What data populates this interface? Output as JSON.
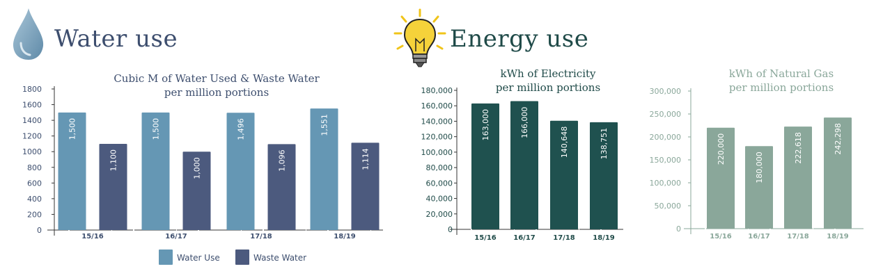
{
  "header": {
    "water_title": "Water use",
    "energy_title": "Energy use",
    "water_icon": "water-drop-icon",
    "energy_icon": "light-bulb-icon"
  },
  "chart_data": [
    {
      "id": "water",
      "type": "bar",
      "title": [
        "Cubic M of Water Used & Waste Water",
        "per million portions"
      ],
      "categories": [
        "15/16",
        "16/17",
        "17/18",
        "18/19"
      ],
      "series": [
        {
          "name": "Water Use",
          "color": "#6597b4",
          "values": [
            1500,
            1500,
            1496,
            1551
          ],
          "labels": [
            "1,500",
            "1,500",
            "1,496",
            "1,551"
          ]
        },
        {
          "name": "Waste Water",
          "color": "#4c5a7e",
          "values": [
            1100,
            1000,
            1096,
            1114
          ],
          "labels": [
            "1,100",
            "1,000",
            "1,096",
            "1,114"
          ]
        }
      ],
      "ylim": [
        0,
        1800
      ],
      "yticks": [
        0,
        200,
        400,
        600,
        800,
        1000,
        1200,
        1400,
        1600,
        1800
      ],
      "ytick_labels": [
        "0",
        "200",
        "400",
        "600",
        "800",
        "1000",
        "1200",
        "1400",
        "1600",
        "1800"
      ],
      "legend": "bottom",
      "text_color": "#3d4e6e",
      "axis_color": "#333333"
    },
    {
      "id": "electricity",
      "type": "bar",
      "title": [
        "kWh of Electricity",
        "per million portions"
      ],
      "categories": [
        "15/16",
        "16/17",
        "17/18",
        "18/19"
      ],
      "series": [
        {
          "color": "#1f514f",
          "values": [
            163000,
            166000,
            140648,
            138751
          ],
          "labels": [
            "163,000",
            "166,000",
            "140,648",
            "138,751"
          ]
        }
      ],
      "ylim": [
        0,
        180000
      ],
      "yticks": [
        0,
        20000,
        40000,
        60000,
        80000,
        100000,
        120000,
        140000,
        160000,
        180000
      ],
      "ytick_labels": [
        "0",
        "20,000",
        "40,000",
        "60,000",
        "80,000",
        "100,000",
        "120,000",
        "140,000",
        "160,000",
        "180,000"
      ],
      "text_color": "#1f4a48",
      "axis_color": "#333333"
    },
    {
      "id": "gas",
      "type": "bar",
      "title": [
        "kWh of Natural Gas",
        "per million portions"
      ],
      "categories": [
        "15/16",
        "16/17",
        "17/18",
        "18/19"
      ],
      "series": [
        {
          "color": "#8aa79a",
          "values": [
            220000,
            180000,
            222618,
            242298
          ],
          "labels": [
            "220,000",
            "180,000",
            "222,618",
            "242,298"
          ]
        }
      ],
      "ylim": [
        0,
        300000
      ],
      "yticks": [
        0,
        50000,
        100000,
        150000,
        200000,
        250000,
        300000
      ],
      "ytick_labels": [
        "0",
        "50,000",
        "100,000",
        "150,000",
        "200,000",
        "250,000",
        "300,000"
      ],
      "text_color": "#8aa79a",
      "axis_color": "#8aa79a"
    }
  ]
}
